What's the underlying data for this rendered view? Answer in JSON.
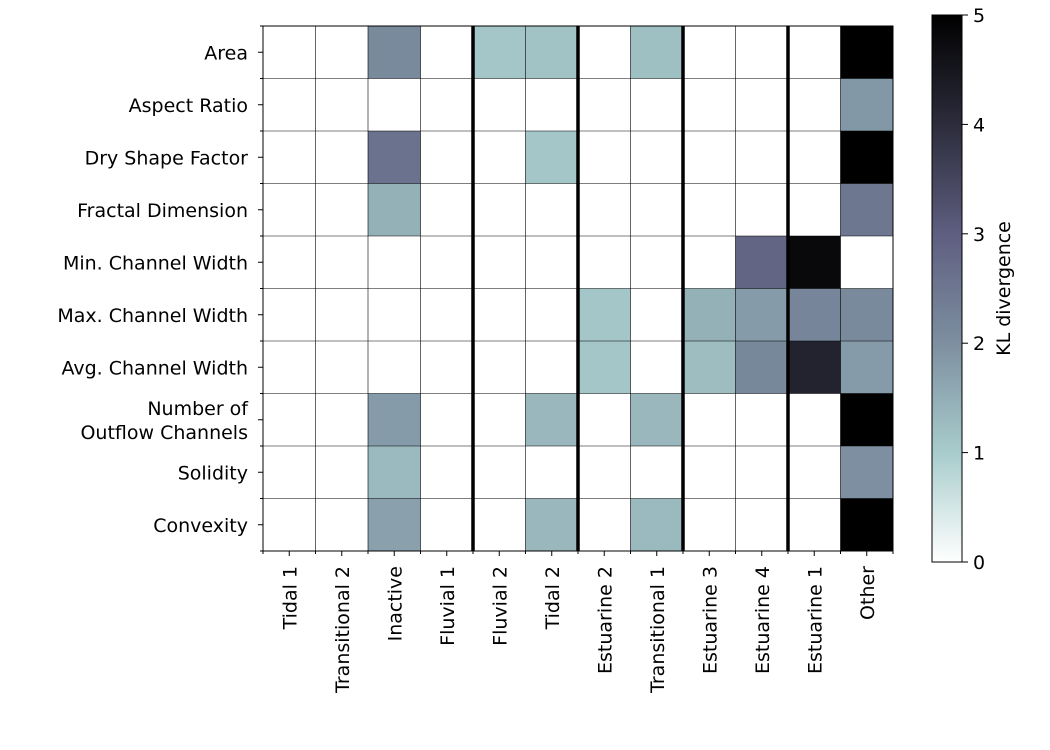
{
  "chart_data": {
    "type": "heatmap",
    "rows": [
      "Area",
      "Aspect Ratio",
      "Dry Shape Factor",
      "Fractal Dimension",
      "Min. Channel Width",
      "Max. Channel Width",
      "Avg. Channel Width",
      "Number of\nOutflow Channels",
      "Solidity",
      "Convexity"
    ],
    "columns": [
      "Tidal 1",
      "Transitional 2",
      "Inactive",
      "Fluvial 1",
      "Fluvial 2",
      "Tidal 2",
      "Estuarine 2",
      "Transitional 1",
      "Estuarine 3",
      "Estuarine 4",
      "Estuarine 1",
      "Other"
    ],
    "values": [
      [
        0,
        0,
        2.1,
        0,
        1.1,
        1.15,
        0,
        1.2,
        0,
        0,
        0,
        5
      ],
      [
        0,
        0,
        0,
        0,
        0,
        0,
        0,
        0,
        0,
        0,
        0,
        1.85
      ],
      [
        0,
        0,
        2.6,
        0,
        0,
        1.1,
        0,
        0,
        0,
        0,
        0,
        5
      ],
      [
        0,
        0,
        1.45,
        0,
        0,
        0,
        0,
        0,
        0,
        0,
        0,
        2.5
      ],
      [
        0,
        0,
        0,
        0,
        0,
        0,
        0,
        0,
        0,
        2.85,
        4.8,
        0
      ],
      [
        0,
        0,
        0,
        0,
        0,
        0,
        1.1,
        0,
        1.45,
        1.8,
        2.2,
        2.1
      ],
      [
        0,
        0,
        0,
        0,
        0,
        0,
        1.1,
        0,
        1.25,
        2.15,
        4.2,
        1.8
      ],
      [
        0,
        0,
        1.8,
        0,
        0,
        1.35,
        0,
        1.35,
        0,
        0,
        0,
        5
      ],
      [
        0,
        0,
        1.3,
        0,
        0,
        0,
        0,
        0,
        0,
        0,
        0,
        2.0
      ],
      [
        0,
        0,
        1.7,
        0,
        0,
        1.35,
        0,
        1.3,
        0,
        0,
        0,
        5
      ]
    ],
    "group_separators_after_column": [
      "Fluvial 1",
      "Tidal 2",
      "Transitional 1",
      "Estuarine 4"
    ],
    "colormap": "bone_r",
    "colormap_stops": [
      "#ffffff",
      "#a8cccc",
      "#7d8fa0",
      "#5e5e80",
      "#2c2c3c",
      "#000000"
    ],
    "colorbar": {
      "label": "KL divergence",
      "range": [
        0,
        5
      ],
      "ticks": [
        "0",
        "1",
        "2",
        "3",
        "4",
        "5"
      ],
      "position": "right"
    }
  }
}
